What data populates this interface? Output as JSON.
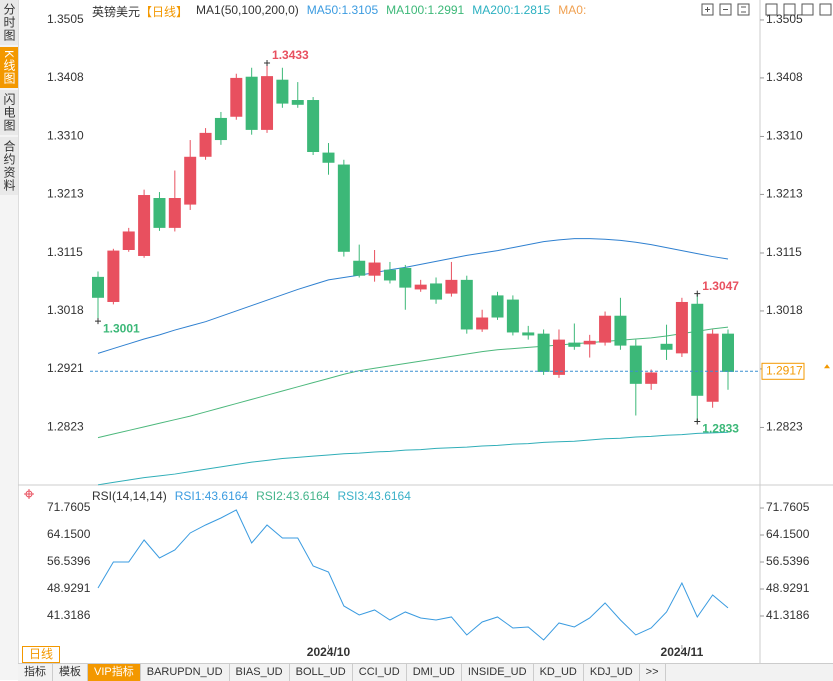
{
  "sidebar": {
    "tabs": [
      "分时图",
      "K线图",
      "闪电图",
      "合约资料"
    ],
    "active": 1
  },
  "chart_data": [
    {
      "type": "candlestick",
      "title": "英镑美元",
      "period": "【日线】",
      "indicator": "MA1(50,100,200,0)",
      "extra_legend": "MA0:",
      "extra_legend_color": "#f0a050",
      "up_color": "#e8505f",
      "down_color": "#3cb878",
      "candles": {
        "open": [
          1.3075,
          1.3033,
          1.312,
          1.311,
          1.3207,
          1.3157,
          1.3196,
          1.3276,
          1.3341,
          1.3343,
          1.341,
          1.3321,
          1.3405,
          1.3371,
          1.3371,
          1.3283,
          1.3263,
          1.3102,
          1.3077,
          1.3087,
          1.309,
          1.3054,
          1.3064,
          1.3047,
          1.307,
          1.2987,
          1.3044,
          1.3037,
          1.2982,
          1.298,
          1.2911,
          1.2965,
          1.2962,
          1.2965,
          1.301,
          1.296,
          1.2896,
          1.2963,
          1.2947,
          1.303,
          1.2866,
          1.298
        ],
        "close": [
          1.304,
          1.3119,
          1.3151,
          1.3212,
          1.3157,
          1.3207,
          1.3276,
          1.3316,
          1.3304,
          1.3408,
          1.3321,
          1.3411,
          1.3365,
          1.3363,
          1.3284,
          1.3266,
          1.3117,
          1.3077,
          1.3099,
          1.3069,
          1.3057,
          1.3062,
          1.3037,
          1.307,
          1.2987,
          1.3007,
          1.3007,
          1.2982,
          1.2977,
          1.2916,
          1.297,
          1.2958,
          1.2968,
          1.301,
          1.296,
          1.2896,
          1.2915,
          1.2953,
          1.3033,
          1.2876,
          1.298,
          1.2916
        ],
        "high": [
          1.3084,
          1.3122,
          1.3157,
          1.3221,
          1.3217,
          1.3253,
          1.3304,
          1.3324,
          1.3351,
          1.3415,
          1.3425,
          1.3433,
          1.3425,
          1.3401,
          1.3376,
          1.3299,
          1.3271,
          1.3129,
          1.312,
          1.31,
          1.3095,
          1.307,
          1.3074,
          1.31,
          1.3077,
          1.302,
          1.305,
          1.3044,
          1.2993,
          1.2987,
          1.2987,
          1.2997,
          1.2978,
          1.3017,
          1.304,
          1.297,
          1.292,
          1.2995,
          1.304,
          1.3047,
          1.2987,
          1.2987
        ],
        "low": [
          1.3001,
          1.3029,
          1.3117,
          1.3107,
          1.3152,
          1.3151,
          1.3187,
          1.3271,
          1.3296,
          1.3338,
          1.3313,
          1.3316,
          1.3358,
          1.3358,
          1.3279,
          1.3246,
          1.3109,
          1.3074,
          1.3067,
          1.3064,
          1.302,
          1.305,
          1.303,
          1.3042,
          1.298,
          1.2983,
          1.3003,
          1.2977,
          1.297,
          1.2911,
          1.2906,
          1.2953,
          1.294,
          1.296,
          1.2953,
          1.2843,
          1.2886,
          1.2936,
          1.2941,
          1.2833,
          1.2856,
          1.2886
        ]
      },
      "annotations": [
        {
          "field": "high",
          "index": 11,
          "color": "#e8505f"
        },
        {
          "field": "low",
          "index": 0,
          "color": "#3cb878"
        },
        {
          "field": "high",
          "index": 39,
          "color": "#e8505f"
        },
        {
          "field": "low",
          "index": 39,
          "color": "#3cb878"
        }
      ],
      "series": [
        {
          "name": "MA50:1.3105",
          "color": "#2f80d0",
          "label_color": "#3b9be0",
          "values": [
            1.2947,
            1.2955,
            1.2963,
            1.2971,
            1.2978,
            1.2986,
            1.2993,
            1.3,
            1.3009,
            1.3018,
            1.3027,
            1.3036,
            1.3045,
            1.3054,
            1.3062,
            1.307,
            1.3074,
            1.3078,
            1.3082,
            1.3087,
            1.3091,
            1.3096,
            1.3101,
            1.3106,
            1.3111,
            1.3115,
            1.3119,
            1.3124,
            1.3129,
            1.3134,
            1.3137,
            1.3139,
            1.3139,
            1.3138,
            1.3136,
            1.3133,
            1.3129,
            1.3124,
            1.3119,
            1.3114,
            1.3109,
            1.3105
          ]
        },
        {
          "name": "MA100:1.2991",
          "color": "#4cb87c",
          "label_color": "#3cb878",
          "values": [
            1.2806,
            1.2812,
            1.2818,
            1.2824,
            1.283,
            1.2836,
            1.2842,
            1.2849,
            1.2856,
            1.2863,
            1.287,
            1.2877,
            1.2884,
            1.2891,
            1.2898,
            1.2905,
            1.2912,
            1.2918,
            1.2922,
            1.2926,
            1.293,
            1.2934,
            1.2938,
            1.2942,
            1.2946,
            1.295,
            1.2953,
            1.2955,
            1.2957,
            1.2959,
            1.2961,
            1.2963,
            1.2965,
            1.2967,
            1.2969,
            1.2971,
            1.2973,
            1.2976,
            1.298,
            1.2984,
            1.2988,
            1.2991
          ]
        },
        {
          "name": "MA200:1.2815",
          "color": "#30aeb8",
          "label_color": "#2bb0c0",
          "values": [
            1.2727,
            1.2731,
            1.2735,
            1.2739,
            1.2742,
            1.2745,
            1.2749,
            1.2753,
            1.2757,
            1.2761,
            1.2765,
            1.2768,
            1.2771,
            1.2773,
            1.2775,
            1.2777,
            1.2779,
            1.278,
            1.2782,
            1.2783,
            1.2785,
            1.2786,
            1.2788,
            1.2789,
            1.279,
            1.2792,
            1.2793,
            1.2795,
            1.2796,
            1.2798,
            1.2799,
            1.28,
            1.2802,
            1.2804,
            1.2805,
            1.2807,
            1.2808,
            1.281,
            1.2811,
            1.2813,
            1.2814,
            1.2815
          ]
        }
      ],
      "last_price": 1.2917,
      "ylim": [
        1.272,
        1.3525
      ],
      "yticks": [
        1.3505,
        1.3408,
        {
          "value": 1.331,
          "label": "1.3310"
        },
        1.3213,
        1.3115,
        1.3018,
        1.2921,
        1.2823
      ],
      "grid": false
    },
    {
      "type": "line",
      "title": "RSI(14,14,14)",
      "color": "#3a9be0",
      "legend": [
        {
          "name": "RSI1:43.6164",
          "color": "#3a9be0"
        },
        {
          "name": "RSI2:43.6164",
          "color": "#43b48a"
        },
        {
          "name": "RSI3:43.6164",
          "color": "#3ab0c8"
        }
      ],
      "values": [
        49.21,
        56.54,
        56.54,
        62.74,
        57.67,
        59.92,
        64.72,
        66.97,
        68.94,
        71.2,
        61.9,
        66.97,
        63.31,
        63.31,
        55.41,
        53.72,
        44.14,
        41.6,
        43.01,
        40.19,
        42.45,
        40.76,
        40.19,
        41.04,
        35.97,
        39.63,
        41.04,
        37.94,
        38.22,
        34.56,
        39.35,
        38.22,
        40.76,
        44.99,
        40.19,
        35.97,
        37.94,
        42.45,
        50.62,
        41.04,
        47.24,
        43.6164
      ],
      "categories": [
        null,
        null,
        null,
        null,
        null,
        null,
        null,
        null,
        null,
        null,
        null,
        null,
        null,
        null,
        null,
        "2024/10",
        null,
        null,
        null,
        null,
        null,
        null,
        null,
        null,
        null,
        null,
        null,
        null,
        null,
        null,
        null,
        null,
        null,
        null,
        null,
        null,
        null,
        null,
        "2024/11",
        null,
        null,
        null
      ],
      "ylim": [
        33.14,
        74.86
      ],
      "yticks": [
        71.7605,
        {
          "value": 64.15,
          "label": "64.1500"
        },
        56.5396,
        48.9291,
        41.3186
      ],
      "grid": false
    }
  ],
  "period_tab": "日线",
  "toolbar": {
    "tabs": [
      "指标",
      "模板",
      "VIP指标",
      "BARUPDN_UD",
      "BIAS_UD",
      "BOLL_UD",
      "CCI_UD",
      "DMI_UD",
      "INSIDE_UD",
      "KD_UD",
      "KDJ_UD",
      ">>"
    ],
    "active": 2
  }
}
